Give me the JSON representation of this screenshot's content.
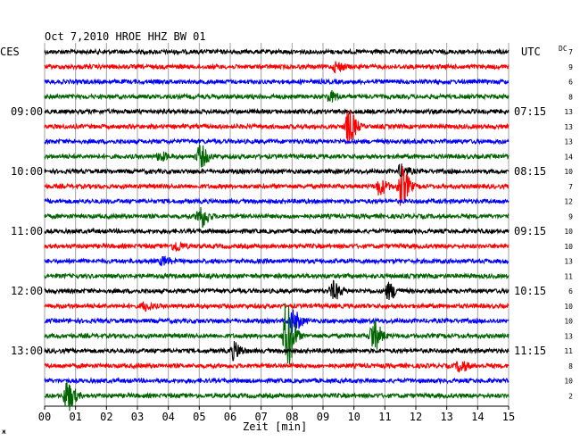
{
  "chart_data": {
    "type": "line",
    "title": "Oct 7,2010   HROE HHZ BW 01",
    "left_axis_label": "CES",
    "right_axis_label": "UTC",
    "dc_label": "DC",
    "xlabel": "Zeit [min]",
    "xlim": [
      0,
      15
    ],
    "x_ticks": [
      "00",
      "01",
      "02",
      "03",
      "04",
      "05",
      "06",
      "07",
      "08",
      "09",
      "10",
      "11",
      "12",
      "13",
      "14",
      "15"
    ],
    "grid": true,
    "trace_colors": [
      "#000000",
      "#ff0000",
      "#0000ff",
      "#006400"
    ],
    "left_time_labels": [
      {
        "trace": 4,
        "label": "09:00"
      },
      {
        "trace": 8,
        "label": "10:00"
      },
      {
        "trace": 12,
        "label": "11:00"
      },
      {
        "trace": 16,
        "label": "12:00"
      },
      {
        "trace": 20,
        "label": "13:00"
      }
    ],
    "right_time_labels": [
      {
        "trace": 4,
        "label": "07:15"
      },
      {
        "trace": 8,
        "label": "08:15"
      },
      {
        "trace": 12,
        "label": "09:15"
      },
      {
        "trace": 16,
        "label": "10:15"
      },
      {
        "trace": 20,
        "label": "11:15"
      }
    ],
    "dc_offsets": [
      "7",
      "9",
      "6",
      "8",
      "13",
      "13",
      "13",
      "14",
      "10",
      "7",
      "12",
      "9",
      "10",
      "10",
      "13",
      "11",
      "6",
      "10",
      "10",
      "13",
      "11",
      "8",
      "10",
      "2"
    ],
    "traces": [
      {
        "events": []
      },
      {
        "events": [
          {
            "t": 9.4,
            "amp": 0.25
          }
        ]
      },
      {
        "events": []
      },
      {
        "events": [
          {
            "t": 9.2,
            "amp": 0.25
          }
        ]
      },
      {
        "events": []
      },
      {
        "events": [
          {
            "t": 9.8,
            "amp": 0.85
          }
        ]
      },
      {
        "events": []
      },
      {
        "events": [
          {
            "t": 5.0,
            "amp": 0.55
          },
          {
            "t": 3.7,
            "amp": 0.2
          }
        ]
      },
      {
        "events": [
          {
            "t": 11.5,
            "amp": 0.3
          }
        ]
      },
      {
        "events": [
          {
            "t": 11.5,
            "amp": 1.0
          },
          {
            "t": 10.8,
            "amp": 0.4
          }
        ]
      },
      {
        "events": []
      },
      {
        "events": [
          {
            "t": 5.0,
            "amp": 0.6
          }
        ]
      },
      {
        "events": []
      },
      {
        "events": [
          {
            "t": 4.2,
            "amp": 0.25
          }
        ]
      },
      {
        "events": [
          {
            "t": 3.8,
            "amp": 0.2
          }
        ]
      },
      {
        "events": []
      },
      {
        "events": [
          {
            "t": 9.3,
            "amp": 0.45
          },
          {
            "t": 11.1,
            "amp": 0.4
          }
        ]
      },
      {
        "events": [
          {
            "t": 3.2,
            "amp": 0.2
          }
        ]
      },
      {
        "events": [
          {
            "t": 8.0,
            "amp": 0.6
          }
        ]
      },
      {
        "events": [
          {
            "t": 7.8,
            "amp": 1.8
          },
          {
            "t": 10.6,
            "amp": 0.8
          }
        ]
      },
      {
        "events": [
          {
            "t": 6.1,
            "amp": 0.4
          }
        ]
      },
      {
        "events": [
          {
            "t": 13.4,
            "amp": 0.3
          }
        ]
      },
      {
        "events": []
      },
      {
        "events": [
          {
            "t": 0.7,
            "amp": 0.8
          }
        ]
      }
    ]
  }
}
